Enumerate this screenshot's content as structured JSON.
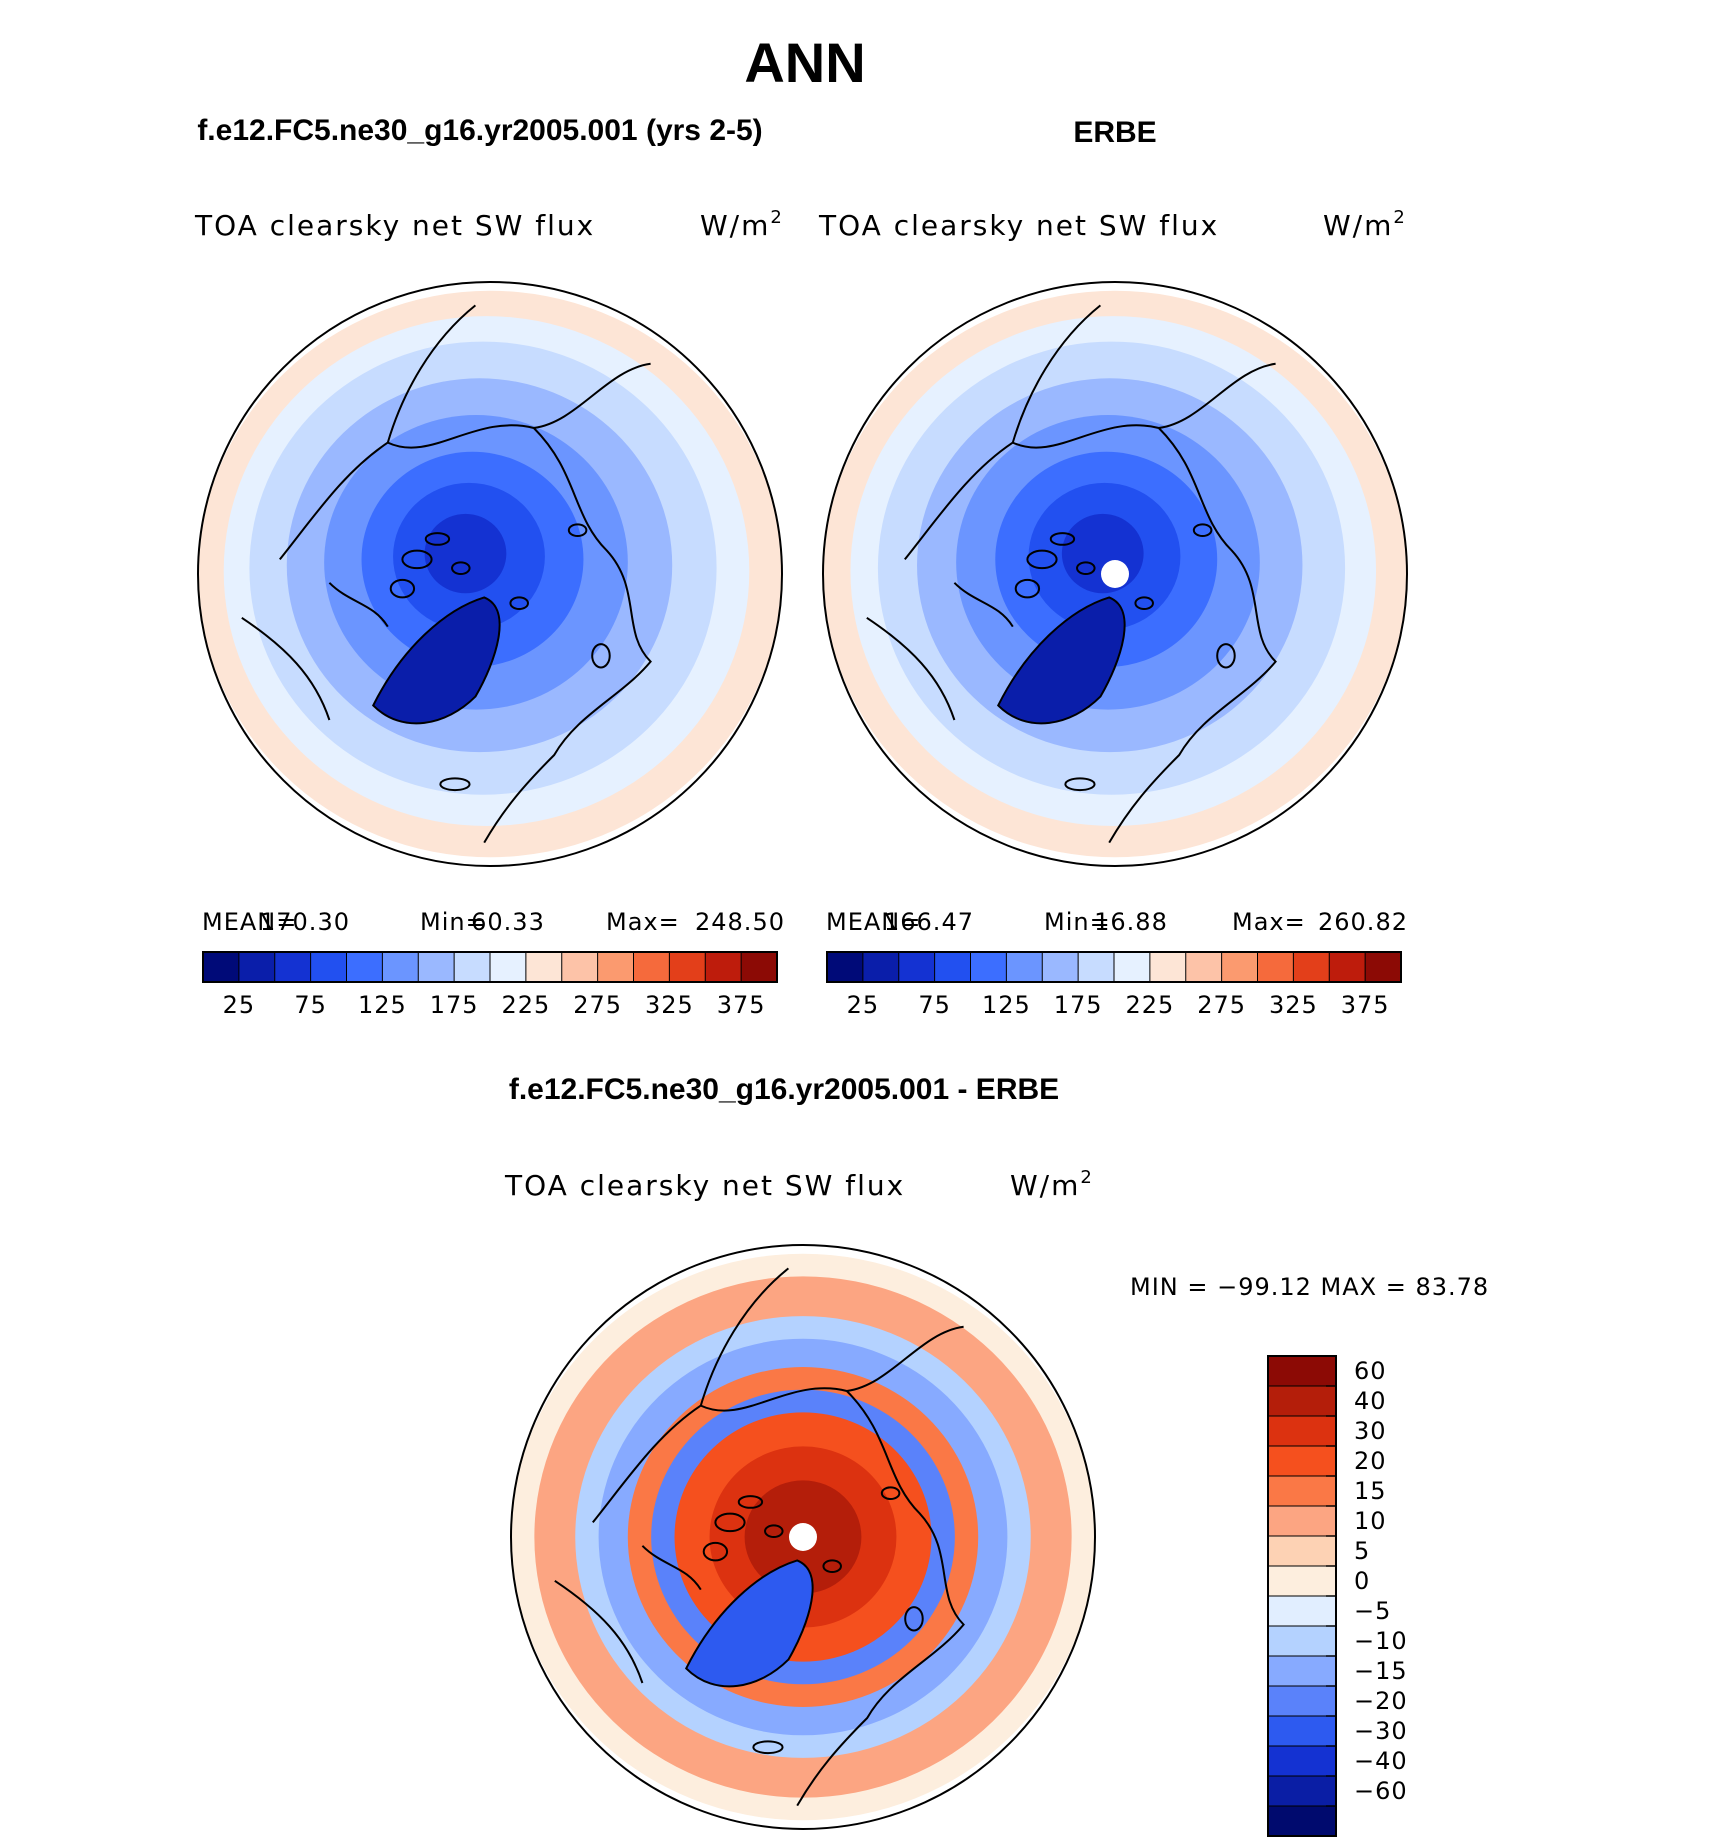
{
  "main_title": "ANN",
  "chart_data": [
    {
      "type": "heatmap",
      "projection": "north-polar-stereographic",
      "title": "f.e12.FC5.ne30_g16.yr2005.001 (yrs 2-5)",
      "variable": "TOA clearsky net SW flux",
      "units_base": "W/m",
      "units_exp": "2",
      "stats": {
        "mean_label": "MEAN=",
        "mean": "170.30",
        "min_label": "Min=",
        "min": "60.33",
        "max_label": "Max=",
        "max": "248.50"
      },
      "colorbar": {
        "levels": [
          25,
          50,
          75,
          100,
          125,
          150,
          175,
          200,
          225,
          250,
          275,
          300,
          325,
          350,
          375
        ],
        "tick_labels": [
          "25",
          "75",
          "125",
          "175",
          "225",
          "275",
          "325",
          "375"
        ],
        "colors": [
          "#000a78",
          "#0a1eaa",
          "#1432d2",
          "#2250f0",
          "#3c6eff",
          "#6b95ff",
          "#9ab8ff",
          "#c7dcff",
          "#e6f1ff",
          "#fde5d6",
          "#fdc3a8",
          "#fb9a6f",
          "#f56a3c",
          "#e33f1a",
          "#be1c0c",
          "#8c0a05"
        ]
      }
    },
    {
      "type": "heatmap",
      "projection": "north-polar-stereographic",
      "title": "ERBE",
      "variable": "TOA clearsky net SW flux",
      "units_base": "W/m",
      "units_exp": "2",
      "stats": {
        "mean_label": "MEAN=",
        "mean": "166.47",
        "min_label": "Min=",
        "min": "16.88",
        "max_label": "Max=",
        "max": "260.82"
      },
      "colorbar": {
        "levels": [
          25,
          50,
          75,
          100,
          125,
          150,
          175,
          200,
          225,
          250,
          275,
          300,
          325,
          350,
          375
        ],
        "tick_labels": [
          "25",
          "75",
          "125",
          "175",
          "225",
          "275",
          "325",
          "375"
        ],
        "colors": [
          "#000a78",
          "#0a1eaa",
          "#1432d2",
          "#2250f0",
          "#3c6eff",
          "#6b95ff",
          "#9ab8ff",
          "#c7dcff",
          "#e6f1ff",
          "#fde5d6",
          "#fdc3a8",
          "#fb9a6f",
          "#f56a3c",
          "#e33f1a",
          "#be1c0c",
          "#8c0a05"
        ]
      }
    },
    {
      "type": "heatmap",
      "projection": "north-polar-stereographic",
      "title": "f.e12.FC5.ne30_g16.yr2005.001 - ERBE",
      "variable": "TOA clearsky net SW flux",
      "units_base": "W/m",
      "units_exp": "2",
      "stats_text": "MIN = −99.12 MAX =  83.78",
      "colorbar": {
        "orientation": "vertical",
        "tick_labels": [
          "60",
          "40",
          "30",
          "20",
          "15",
          "10",
          "5",
          "0",
          "−5",
          "−10",
          "−15",
          "−20",
          "−30",
          "−40",
          "−60"
        ],
        "colors": [
          "#8c0a05",
          "#b41e0a",
          "#dc3210",
          "#f5501e",
          "#fa7846",
          "#fca582",
          "#fdd2b4",
          "#fdeede",
          "#e1eeff",
          "#b4d2ff",
          "#87aaff",
          "#5a82fa",
          "#2d5af0",
          "#1432d2",
          "#0a1ea5",
          "#000a6e"
        ]
      }
    }
  ]
}
